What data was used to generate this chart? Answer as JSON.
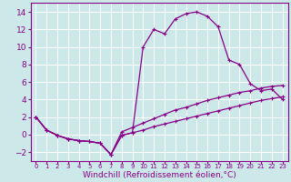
{
  "xlabel": "Windchill (Refroidissement éolien,°C)",
  "bg_color": "#cce8e8",
  "grid_color": "#aadddd",
  "line_color": "#880088",
  "xlim": [
    -0.5,
    23.5
  ],
  "ylim": [
    -3.0,
    15.0
  ],
  "xticks": [
    0,
    1,
    2,
    3,
    4,
    5,
    6,
    7,
    8,
    9,
    10,
    11,
    12,
    13,
    14,
    15,
    16,
    17,
    18,
    19,
    20,
    21,
    22,
    23
  ],
  "yticks": [
    -2,
    0,
    2,
    4,
    6,
    8,
    10,
    12,
    14
  ],
  "curve1_x": [
    0,
    1,
    2,
    3,
    4,
    5,
    6,
    7,
    8,
    9,
    10,
    11,
    12,
    13,
    14,
    15,
    16,
    17,
    18,
    19,
    20,
    21,
    22,
    23
  ],
  "curve1_y": [
    2.0,
    0.5,
    -0.1,
    -0.5,
    -0.7,
    -0.8,
    -1.0,
    -2.3,
    -0.1,
    0.2,
    10.0,
    12.0,
    11.5,
    13.2,
    13.8,
    14.0,
    13.5,
    12.3,
    8.5,
    8.0,
    5.8,
    5.0,
    5.2,
    4.0
  ],
  "curve2_x": [
    0,
    1,
    2,
    3,
    4,
    5,
    6,
    7,
    8,
    9,
    10,
    11,
    12,
    13,
    14,
    15,
    16,
    17,
    18,
    19,
    20,
    21,
    22,
    23
  ],
  "curve2_y": [
    2.0,
    0.5,
    -0.1,
    -0.5,
    -0.7,
    -0.8,
    -1.0,
    -2.3,
    -0.1,
    0.2,
    0.5,
    0.9,
    1.2,
    1.5,
    1.8,
    2.1,
    2.4,
    2.7,
    3.0,
    3.3,
    3.6,
    3.9,
    4.1,
    4.3
  ],
  "curve3_x": [
    0,
    1,
    2,
    3,
    4,
    5,
    6,
    7,
    8,
    9,
    10,
    11,
    12,
    13,
    14,
    15,
    16,
    17,
    18,
    19,
    20,
    21,
    22,
    23
  ],
  "curve3_y": [
    2.0,
    0.5,
    -0.1,
    -0.5,
    -0.7,
    -0.8,
    -1.0,
    -2.3,
    0.3,
    0.8,
    1.3,
    1.8,
    2.3,
    2.8,
    3.1,
    3.5,
    3.9,
    4.2,
    4.5,
    4.8,
    5.0,
    5.3,
    5.5,
    5.6
  ],
  "fontsize_label": 6.5,
  "fontsize_tick_x": 5.0,
  "fontsize_tick_y": 6.5
}
